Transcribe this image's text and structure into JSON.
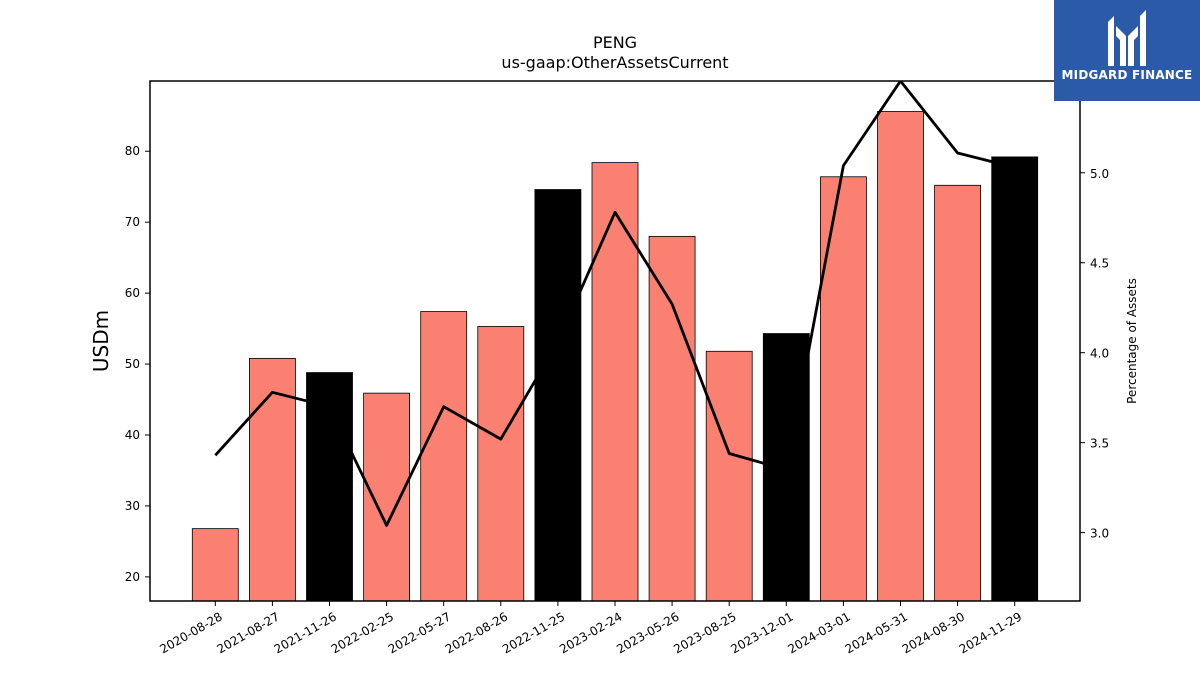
{
  "chart_data": {
    "type": "bar",
    "title": "PENG",
    "subtitle": "us-gaap:OtherAssetsCurrent",
    "ylabel": "USDm",
    "y2label": "Percentage of Assets",
    "ylim": [
      16.6,
      89.9
    ],
    "y2lim": [
      2.62,
      5.51
    ],
    "yticks": [
      20,
      30,
      40,
      50,
      60,
      70,
      80
    ],
    "y2ticks": [
      3.0,
      3.5,
      4.0,
      4.5,
      5.0
    ],
    "categories": [
      "2020-08-28",
      "2021-08-27",
      "2021-11-26",
      "2022-02-25",
      "2022-05-27",
      "2022-08-26",
      "2022-11-25",
      "2023-02-24",
      "2023-05-26",
      "2023-08-25",
      "2023-12-01",
      "2024-03-01",
      "2024-05-31",
      "2024-08-30",
      "2024-11-29"
    ],
    "series": [
      {
        "axis": "left",
        "type": "bar",
        "values": [
          26.8,
          50.8,
          48.8,
          45.9,
          57.4,
          55.3,
          74.6,
          78.4,
          68.0,
          51.8,
          54.3,
          76.4,
          85.6,
          75.2,
          79.2
        ],
        "colors": [
          "#fa8072",
          "#fa8072",
          "#000000",
          "#fa8072",
          "#fa8072",
          "#fa8072",
          "#000000",
          "#fa8072",
          "#fa8072",
          "#fa8072",
          "#000000",
          "#fa8072",
          "#fa8072",
          "#fa8072",
          "#000000"
        ]
      },
      {
        "axis": "right",
        "type": "line",
        "color": "#000000",
        "values": [
          3.43,
          3.78,
          3.7,
          3.04,
          3.7,
          3.52,
          4.06,
          4.78,
          4.27,
          3.44,
          3.35,
          5.04,
          5.51,
          5.11,
          5.03
        ]
      }
    ]
  },
  "logo": {
    "text": "MIDGARD FINANCE",
    "background": "#2b5aa8"
  }
}
